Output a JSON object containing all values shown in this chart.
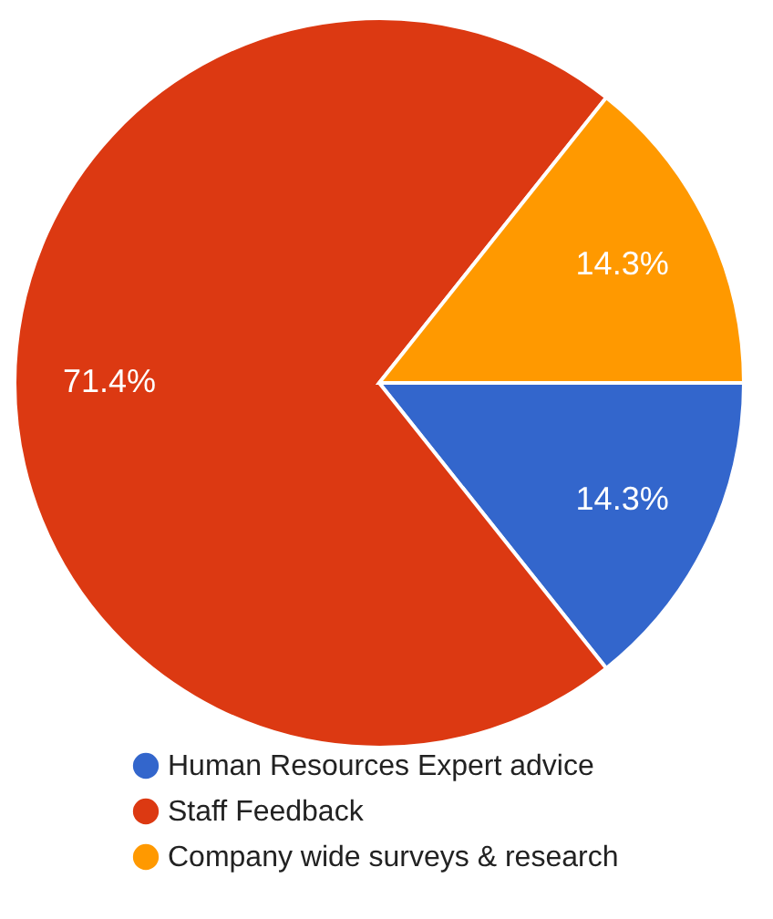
{
  "chart_data": {
    "type": "pie",
    "categories": [
      "Human Resources Expert advice",
      "Staff Feedback",
      "Company wide surveys & research"
    ],
    "values": [
      14.3,
      71.4,
      14.3
    ],
    "colors": [
      "#3366cc",
      "#dc3912",
      "#ff9900"
    ],
    "value_labels": [
      "14.3%",
      "71.4%",
      "14.3%"
    ],
    "legend": "bottom"
  }
}
